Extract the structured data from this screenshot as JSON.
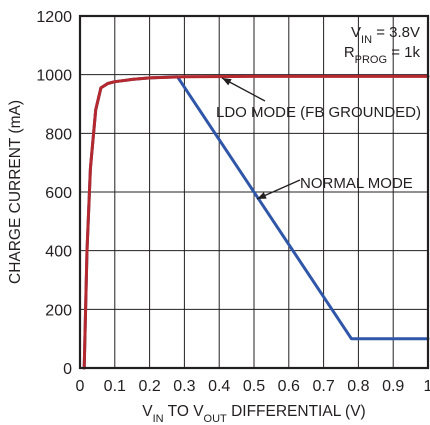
{
  "chart_data": {
    "type": "line",
    "xlabel": {
      "p1": "V",
      "s1": "IN",
      "p2": " TO V",
      "s2": "OUT",
      "p3": " DIFFERENTIAL (V)"
    },
    "ylabel": "CHARGE CURRENT (mA)",
    "xlim": [
      0,
      1
    ],
    "ylim": [
      0,
      1200
    ],
    "x_ticks": [
      0,
      0.1,
      0.2,
      0.3,
      0.4,
      0.5,
      0.6,
      0.7,
      0.8,
      0.9,
      1
    ],
    "x_tick_labels": [
      "0",
      "0.1",
      "0.2",
      "0.3",
      "0.4",
      "0.5",
      "0.6",
      "0.7",
      "0.8",
      "0.9",
      "1"
    ],
    "y_ticks": [
      0,
      200,
      400,
      600,
      800,
      1000,
      1200
    ],
    "y_tick_labels": [
      "0",
      "200",
      "400",
      "600",
      "800",
      "1000",
      "1200"
    ],
    "grid": true,
    "series": [
      {
        "name": "LDO MODE (FB GROUNDED)",
        "color": "#b5282e",
        "points": [
          [
            0.012,
            0
          ],
          [
            0.02,
            400
          ],
          [
            0.03,
            680
          ],
          [
            0.045,
            880
          ],
          [
            0.06,
            955
          ],
          [
            0.08,
            970
          ],
          [
            0.1,
            976
          ],
          [
            0.15,
            984
          ],
          [
            0.2,
            989
          ],
          [
            0.3,
            993
          ],
          [
            0.5,
            994
          ],
          [
            1.0,
            994
          ]
        ]
      },
      {
        "name": "NORMAL MODE",
        "color": "#2f56a8",
        "points": [
          [
            0.012,
            0
          ],
          [
            0.02,
            400
          ],
          [
            0.03,
            680
          ],
          [
            0.045,
            880
          ],
          [
            0.06,
            955
          ],
          [
            0.08,
            970
          ],
          [
            0.1,
            976
          ],
          [
            0.15,
            984
          ],
          [
            0.2,
            989
          ],
          [
            0.28,
            993
          ],
          [
            0.78,
            100
          ],
          [
            1.0,
            100
          ]
        ]
      }
    ],
    "annotations": {
      "ldo": "LDO MODE (FB GROUNDED)",
      "normal": "NORMAL MODE"
    },
    "conditions": {
      "vin_main": "V",
      "vin_sub": "IN",
      "vin_value": " = 3.8V",
      "rprog_main": "R",
      "rprog_sub": "PROG",
      "rprog_value": " = 1k"
    }
  }
}
